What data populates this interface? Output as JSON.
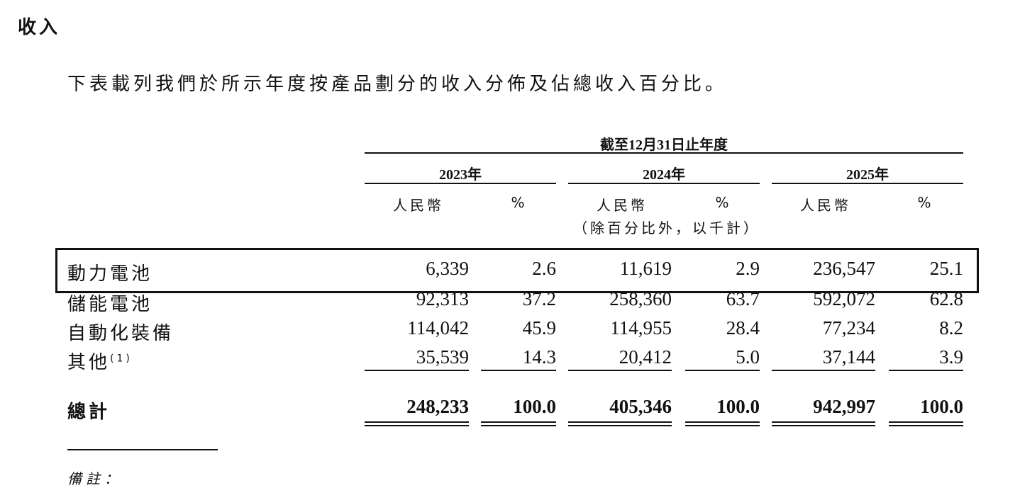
{
  "section_title": "收入",
  "intro": "下表載列我們於所示年度按產品劃分的收入分佈及佔總收入百分比。",
  "table": {
    "period_header": "截至12月31日止年度",
    "years": [
      "2023年",
      "2024年",
      "2025年"
    ],
    "currency_label": "人民幣",
    "percent_label": "%",
    "unit_note": "（除百分比外，以千計）",
    "rows": [
      {
        "label": "動力電池",
        "values": [
          "6,339",
          "2.6",
          "11,619",
          "2.9",
          "236,547",
          "25.1"
        ],
        "highlighted": true
      },
      {
        "label": "儲能電池",
        "values": [
          "92,313",
          "37.2",
          "258,360",
          "63.7",
          "592,072",
          "62.8"
        ]
      },
      {
        "label": "自動化裝備",
        "values": [
          "114,042",
          "45.9",
          "114,955",
          "28.4",
          "77,234",
          "8.2"
        ]
      },
      {
        "label": "其他",
        "footnote": "(1)",
        "values": [
          "35,539",
          "14.3",
          "20,412",
          "5.0",
          "37,144",
          "3.9"
        ]
      }
    ],
    "total": {
      "label": "總計",
      "values": [
        "248,233",
        "100.0",
        "405,346",
        "100.0",
        "942,997",
        "100.0"
      ]
    }
  },
  "notes_label": "備註："
}
